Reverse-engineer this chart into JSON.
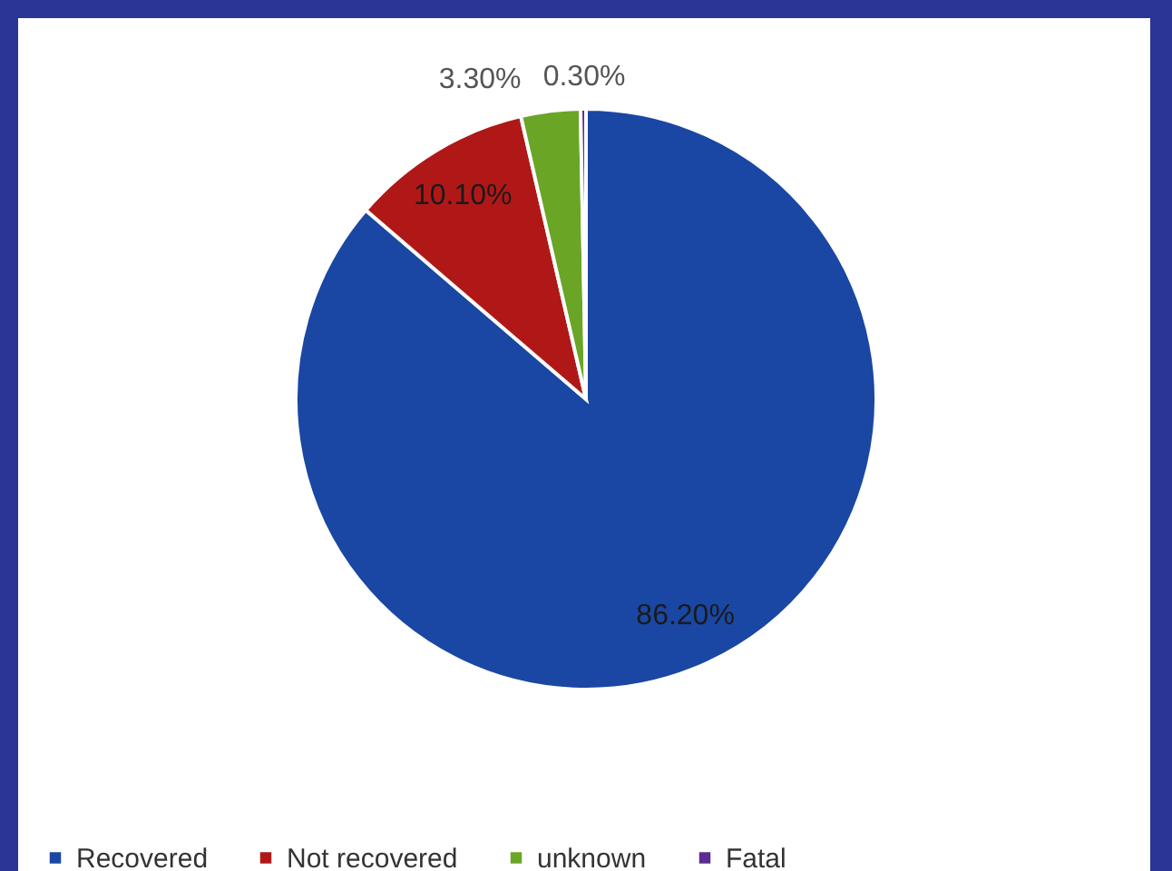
{
  "chart_data": {
    "type": "pie",
    "categories": [
      "Recovered",
      "Not recovered",
      "unknown",
      "Fatal"
    ],
    "values": [
      86.2,
      10.1,
      3.3,
      0.3
    ],
    "colors": [
      "#1a47a3",
      "#b01818",
      "#6aa526",
      "#5b2d91"
    ],
    "value_labels": [
      "86.20%",
      "10.10%",
      "3.30%",
      "0.30%"
    ],
    "legend": "bottom"
  }
}
